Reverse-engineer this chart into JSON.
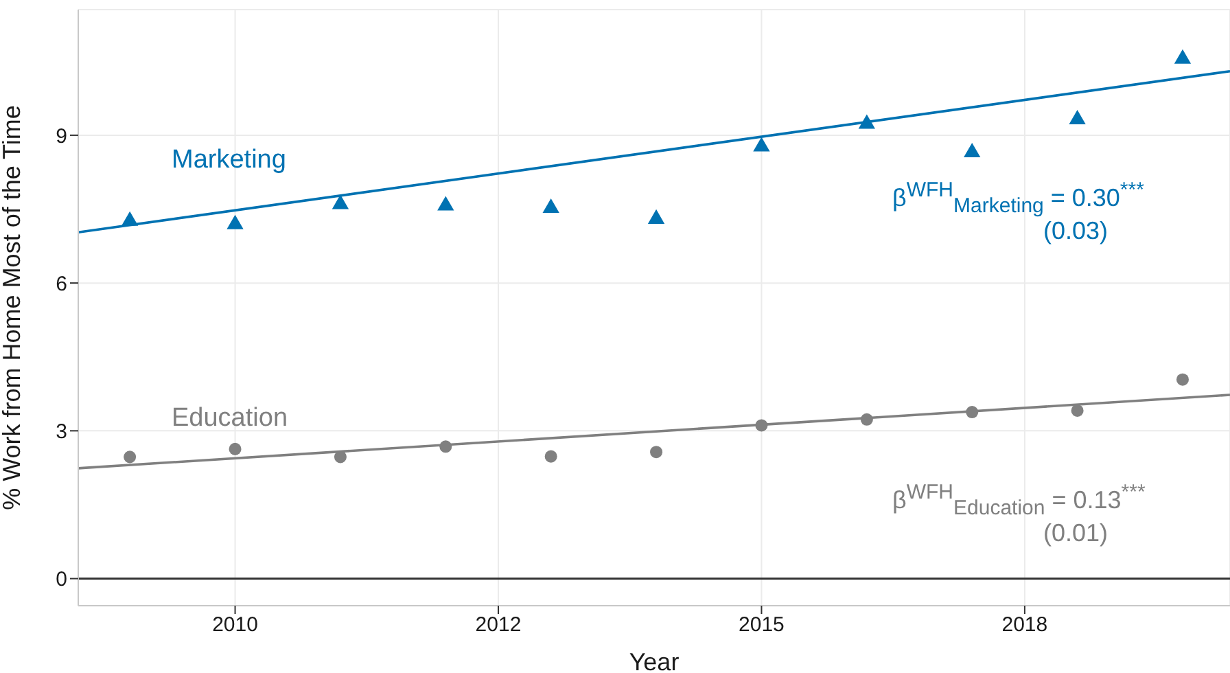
{
  "chart_data": {
    "type": "scatter",
    "xlabel": "Year",
    "ylabel": "% Work from Home Most of the Time",
    "xlim": [
      2008.51,
      2019.45
    ],
    "ylim": [
      -0.55,
      11.55
    ],
    "xticks": [
      2010,
      {
        "value": 2012.5,
        "label": "2012"
      },
      2015,
      {
        "value": 2017.5,
        "label": "2018"
      }
    ],
    "yticks": [
      0,
      3,
      6,
      9
    ],
    "grid": true,
    "ref_lines": [
      {
        "axis": "y",
        "value": 0,
        "color": "#333333"
      }
    ],
    "annotations": [
      "β$^{WFH}$$_{Marketing}$ = 0.30$^{***}$",
      "(0.03)",
      "β$^{WFH}$$_{Education}$ = 0.13$^{***}$",
      "(0.01)"
    ],
    "series": [
      {
        "name": "Marketing",
        "marker": "triangle",
        "color": "#0072b2",
        "x": [
          2009,
          2010,
          2011,
          2012,
          2013,
          2014,
          2015,
          2016,
          2017,
          2018,
          2019
        ],
        "values": [
          7.26,
          7.19,
          7.6,
          7.57,
          7.52,
          7.3,
          8.77,
          9.23,
          8.65,
          9.32,
          10.55
        ]
      },
      {
        "name": "Education",
        "marker": "circle",
        "color": "#808080",
        "x": [
          2009,
          2010,
          2011,
          2012,
          2013,
          2014,
          2015,
          2016,
          2017,
          2018,
          2019
        ],
        "values": [
          2.47,
          2.63,
          2.47,
          2.68,
          2.48,
          2.57,
          3.11,
          3.23,
          3.38,
          3.41,
          4.04
        ]
      },
      {
        "type": "line",
        "color": "#0072b2",
        "x": [
          2008.51,
          2019.45
        ],
        "values": [
          7.03,
          10.3
        ]
      },
      {
        "type": "line",
        "color": "#808080",
        "x": [
          2008.51,
          2019.45
        ],
        "values": [
          2.24,
          3.73
        ]
      }
    ]
  }
}
